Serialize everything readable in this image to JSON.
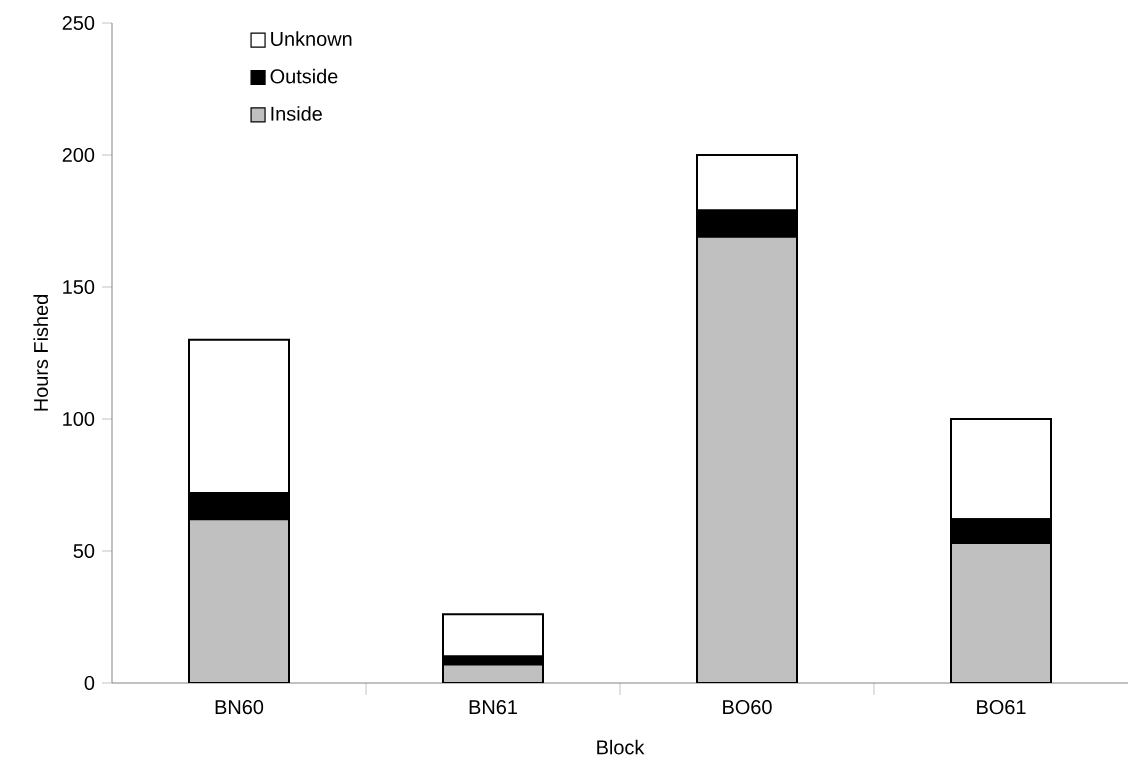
{
  "chart_data": {
    "type": "bar",
    "stacked": true,
    "xlabel": "Block",
    "ylabel": "Hours Fished",
    "categories": [
      "BN60",
      "BN61",
      "BO60",
      "BO61"
    ],
    "series": [
      {
        "name": "Inside",
        "color": "#c0c0c0",
        "values": [
          62,
          7,
          169,
          53
        ]
      },
      {
        "name": "Outside",
        "color": "#000000",
        "values": [
          10,
          3,
          10,
          9
        ]
      },
      {
        "name": "Unknown",
        "color": "#ffffff",
        "values": [
          58,
          16,
          21,
          38
        ]
      }
    ],
    "ylim": [
      0,
      250
    ],
    "yticks": [
      0,
      50,
      100,
      150,
      200,
      250
    ],
    "grid": false,
    "legend": "top left"
  }
}
